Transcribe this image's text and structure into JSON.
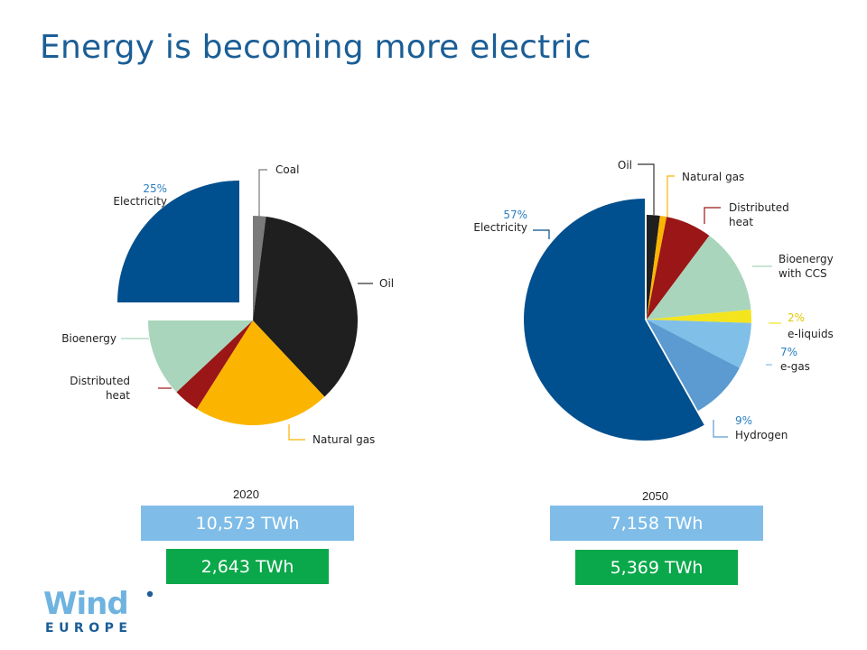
{
  "title": "Energy is becoming more electric",
  "chart_data": [
    {
      "type": "pie",
      "year_label": "2020",
      "slices": [
        {
          "name": "Coal",
          "value": 2,
          "color": "#7a7a7a",
          "pct_label": ""
        },
        {
          "name": "Oil",
          "value": 36,
          "color": "#1f1f1f",
          "pct_label": ""
        },
        {
          "name": "Natural gas",
          "value": 21,
          "color": "#fbb500",
          "pct_label": ""
        },
        {
          "name": "Distributed heat",
          "value": 4,
          "color": "#9b1616",
          "pct_label": ""
        },
        {
          "name": "Bioenergy",
          "value": 12,
          "color": "#a8d5bb",
          "pct_label": ""
        },
        {
          "name": "Electricity",
          "value": 25,
          "color": "#004f8e",
          "pct_label": "25%"
        }
      ],
      "totals": {
        "total_energy": "10,573 TWh",
        "electricity": "2,643 TWh"
      }
    },
    {
      "type": "pie",
      "year_label": "2050",
      "slices": [
        {
          "name": "Oil",
          "value": 2,
          "color": "#1f1f1f",
          "pct_label": ""
        },
        {
          "name": "Natural gas",
          "value": 1,
          "color": "#fbb500",
          "pct_label": ""
        },
        {
          "name": "Distributed heat",
          "value": 7,
          "color": "#9b1616",
          "pct_label": ""
        },
        {
          "name": "Bioenergy with CCS",
          "value": 13,
          "color": "#a8d5bb",
          "pct_label": ""
        },
        {
          "name": "e-liquids",
          "value": 2,
          "color": "#f4e41d",
          "pct_label": "2%"
        },
        {
          "name": "e-gas",
          "value": 7,
          "color": "#80bfe8",
          "pct_label": "7%"
        },
        {
          "name": "Hydrogen",
          "value": 9,
          "color": "#5b9bd1",
          "pct_label": "9%"
        },
        {
          "name": "Electricity",
          "value": 57,
          "color": "#004f8e",
          "pct_label": "57%"
        }
      ],
      "totals": {
        "total_energy": "7,158 TWh",
        "electricity": "5,369 TWh"
      }
    }
  ],
  "colors": {
    "title": "#1b5e96",
    "total_box": "#7fbde8",
    "electricity_box": "#0aa84a",
    "pct_text": "#2a7fc0"
  },
  "logo": {
    "word": "Wind",
    "sub": "EUROPE"
  }
}
